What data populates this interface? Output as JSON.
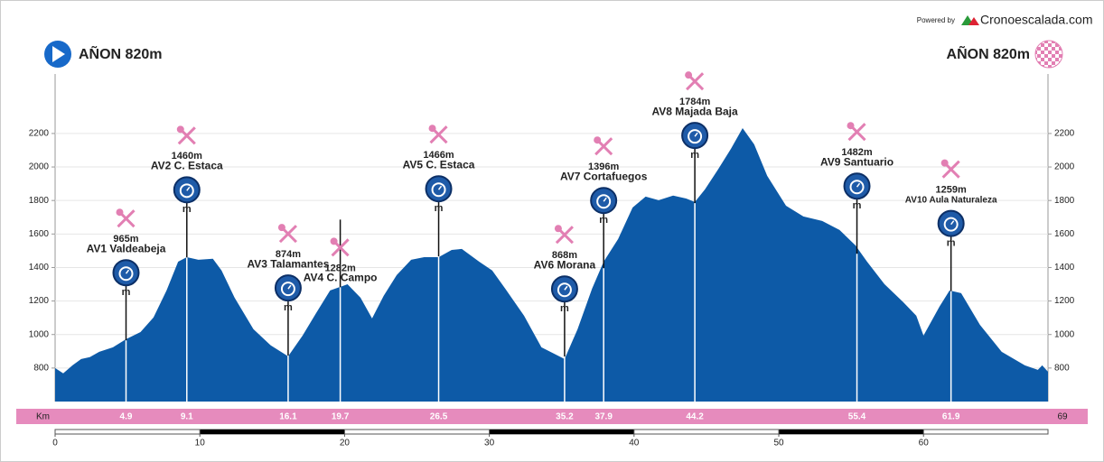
{
  "chart_data": {
    "type": "area",
    "powered_by": "Powered by",
    "brand": "Cronoescalada.com",
    "start_label": "AÑON 820m",
    "finish_label": "AÑON 820m",
    "km_label": "Km",
    "total_km": 69,
    "icon_caption": "m",
    "xlim": [
      0,
      68.6
    ],
    "xticks": [
      0,
      10,
      20,
      30,
      40,
      50,
      60
    ],
    "ylim": [
      600,
      2555
    ],
    "yticks": [
      800,
      1000,
      1200,
      1400,
      1600,
      1800,
      2000,
      2200
    ],
    "grid": true,
    "series": [
      {
        "color": "#0d5aa7",
        "x": [
          0,
          0.56,
          1.2,
          1.8,
          2.4,
          3.05,
          4.0,
          4.9,
          5.9,
          6.8,
          7.7,
          8.5,
          9.1,
          9.9,
          10.9,
          11.5,
          12.4,
          13.7,
          14.9,
          16.1,
          17.1,
          18.0,
          19.0,
          20.2,
          21.1,
          21.9,
          22.7,
          23.6,
          24.6,
          25.5,
          26.5,
          27.4,
          28.1,
          29.3,
          30.2,
          31.1,
          32.4,
          33.6,
          35.2,
          36.1,
          37.1,
          37.9,
          38.9,
          39.9,
          40.8,
          41.7,
          42.7,
          43.6,
          44.2,
          44.9,
          45.8,
          46.7,
          47.5,
          48.3,
          49.2,
          50.5,
          51.7,
          53.0,
          54.2,
          55.3,
          56.1,
          57.3,
          58.6,
          59.5,
          60.0,
          61.1,
          61.8,
          62.6,
          63.9,
          65.4,
          67.0,
          67.9,
          68.2,
          68.6
        ],
        "values": [
          800,
          768,
          816,
          854,
          865,
          897,
          924,
          972,
          1015,
          1102,
          1263,
          1435,
          1462,
          1446,
          1452,
          1382,
          1220,
          1032,
          935,
          870,
          994,
          1123,
          1263,
          1300,
          1220,
          1096,
          1231,
          1355,
          1446,
          1462,
          1462,
          1505,
          1511,
          1435,
          1382,
          1274,
          1112,
          924,
          854,
          1032,
          1274,
          1435,
          1570,
          1758,
          1823,
          1802,
          1829,
          1812,
          1791,
          1866,
          1985,
          2109,
          2232,
          2135,
          1947,
          1769,
          1705,
          1678,
          1624,
          1532,
          1435,
          1301,
          1193,
          1112,
          994,
          1166,
          1263,
          1247,
          1058,
          897,
          816,
          789,
          816,
          778
        ]
      }
    ],
    "waypoints": [
      {
        "name": "AV1 Valdeabeja",
        "km": 4.9,
        "elevation": 965,
        "elevation_label": "965m",
        "timed": true
      },
      {
        "name": "AV2 C. Estaca",
        "km": 9.1,
        "elevation": 1460,
        "elevation_label": "1460m",
        "timed": true
      },
      {
        "name": "AV3 Talamantes",
        "km": 16.1,
        "elevation": 874,
        "elevation_label": "874m",
        "timed": true
      },
      {
        "name": "AV4 C. Campo",
        "km": 19.7,
        "elevation": 1282,
        "elevation_label": "1282m",
        "timed": false
      },
      {
        "name": "AV5 C. Estaca",
        "km": 26.5,
        "elevation": 1466,
        "elevation_label": "1466m",
        "timed": true
      },
      {
        "name": "AV6 Morana",
        "km": 35.2,
        "elevation": 868,
        "elevation_label": "868m",
        "timed": true
      },
      {
        "name": "AV7 Cortafuegos",
        "km": 37.9,
        "elevation": 1396,
        "elevation_label": "1396m",
        "timed": true
      },
      {
        "name": "AV8 Majada Baja",
        "km": 44.2,
        "elevation": 1784,
        "elevation_label": "1784m",
        "timed": true
      },
      {
        "name": "AV9 Santuario",
        "km": 55.4,
        "elevation": 1482,
        "elevation_label": "1482m",
        "timed": true
      },
      {
        "name": "AV10 Aula Naturaleza",
        "km": 61.9,
        "elevation": 1259,
        "elevation_label": "1259m",
        "timed": true
      }
    ]
  }
}
